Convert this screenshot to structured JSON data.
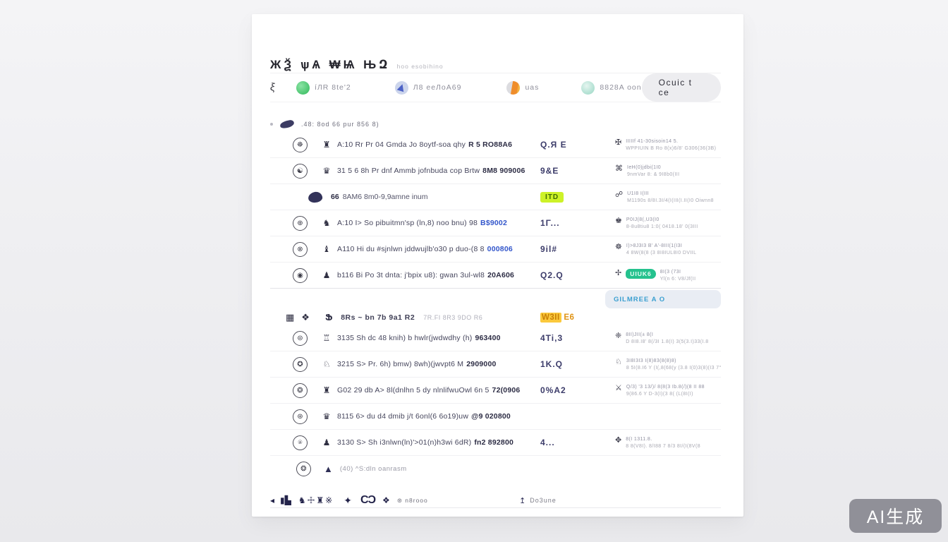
{
  "header": {
    "title": "ЖѮ ѱѦ ₩Ѩ ЊԶ",
    "subtitle": "hoo esobihino"
  },
  "tabbar": {
    "menu_icon": "ξ",
    "tabs": [
      {
        "label": "íЛR 8te'2",
        "icon_color": "#2fb859"
      },
      {
        "label": "Л8 ееЛоА69",
        "icon_color": "#4c62c6"
      },
      {
        "label": "uas",
        "icon_color": "#ef8d2b"
      },
      {
        "label": "8828A oon",
        "icon_color": "#96d6c3"
      }
    ],
    "action_button": "Ocuic t ce"
  },
  "section1": {
    "label": ".48: 8od 66 pur  856 8)"
  },
  "rows_top": [
    {
      "avatar": "☸",
      "stamp": "♜",
      "text": "A:10 Rr Pr 04 Gmda Jo 8oytf-soa qhy",
      "tail": "R 5 RO88A6",
      "value": "Q.Я E",
      "ricon": "✠",
      "r1": "IIIIIf 41-30sisoin14 5.",
      "r2": "WPPIUIN B Ro 8(x)6/8' G306(36(3B)"
    },
    {
      "avatar": "☯",
      "stamp": "♛",
      "text": "31 5 6 8h Pr dnf Ammb jofnbuda cop Brtw",
      "tail": "8M8 909006",
      "value": "9&E",
      "ricon": "⌘",
      "r1": "IeH(0)jdbi(1I0",
      "r2": "9nmVar 8: & 9I8b0(III"
    },
    {
      "kind": "group",
      "prefix": "66",
      "text": "8AM6 8m0-9,9amne inum",
      "badge": "ITD",
      "ricon": "☍",
      "r1": "U1I8 I(III",
      "r2": "M1190s 8/8I.3I/4(I(III(I.II(I0 Oiwnn8"
    },
    {
      "avatar": "⊕",
      "stamp": "♞",
      "text": "A:10 I> So pibuitmn'sp (ln,8) noo bnu) 98",
      "link": "B$9002",
      "value": "1Γ...",
      "ricon": "♚",
      "r1": "P0IJ(8(,U3(I0",
      "r2": "8-8u8tiu8 1:0( 0418.18' 0(3III"
    },
    {
      "avatar": "⊗",
      "stamp": "♝",
      "text": "A110 Hi du #sjnlwn jddwujlb'o30 p duo-(8 8",
      "link": "000806",
      "value": "9il#",
      "ricon": "☸",
      "r1": "I)>8J3I3 B' A'-8III(1(I3I",
      "r2": "4 8W(8(8 (3 8I8IUL8I0 DVIIL"
    },
    {
      "avatar": "◉",
      "stamp": "♟",
      "text": "b116 Bi Po 3t dnta: j'bpix u8): gwan 3ul-wl8",
      "tail": "20A606",
      "value": "Q2.Q",
      "ricon": "✢",
      "rbadge": "UIUK6",
      "r1": "8I(3 (73I",
      "r2": "Yl(n 6: V8/Jf(II",
      "strong": true
    }
  ],
  "section2": {
    "pill": "GILMREE A O",
    "icon1": "▦",
    "icon2": "❖",
    "glyph": "Ֆ",
    "label": "8Rs ~ bn 7b 9a1 R2",
    "sublabel": "7R.FI 8R3 9DO R6",
    "value_hl": "W3II",
    "value_rest": " E6"
  },
  "rows_bottom": [
    {
      "avatar": "⊜",
      "stamp": "♖",
      "text": "3135 Sh dc 48 knih) b hwlr(jwdwdhy (h)",
      "tail": "963400",
      "value": "4Ti,3",
      "ricon": "❈",
      "r1": "8II)JII(± 8(I",
      "r2": "D 8I8.I8' 8(/3I 1.8(I) 3(5(3.I)33(I.8"
    },
    {
      "avatar": "✪",
      "stamp": "♘",
      "text": "3215 S> Pr. 6h) bmw) 8wh)(jwvpt6 M",
      "tail": "2909000",
      "value": "1K.Q",
      "ricon": "♘",
      "r1": "3I8I3I3 I(8)83(8(8)8)",
      "r2": "8 5I(8.I6 Y (I(,8(68(y (3.8 I(0)3(8)(I3 7°"
    },
    {
      "avatar": "❂",
      "stamp": "♜",
      "text": "G02 29 db A> 8l(dnlhn 5 dy nlnlifwuOwl 6n 5",
      "tail": "72(0906",
      "value": "0%A2",
      "ricon": "⚔",
      "r1": "Q/3) '3 13/)/ 8(8(3 Ib.8(/)(8 II 88",
      "r2": "9(86.6 Y D-3(I)(3 8( (L(8I(I)"
    },
    {
      "avatar": "⊛",
      "stamp": "♛",
      "text": "8115 6> du d4 dmib j/t 6onl(6 6o19)uw",
      "tail": "@9 020800",
      "value": ""
    },
    {
      "avatar": "⍟",
      "stamp": "♟",
      "text": "3130 S> Sh i3nlwn(ln)'>01(n)h3wi 6dR)",
      "tail": "fn2 892800",
      "value": "4...",
      "ricon": "✥",
      "r1": "8(I 1311.8.",
      "r2": "8 8(V8I). 8/I88 7 8/3 8I/(I(8V(8"
    }
  ],
  "person": {
    "avatar": "❂",
    "triangle": "▲",
    "text": "(40) ^S:dln oanrasm"
  },
  "footer": {
    "parts": [
      "◂",
      "▮▙",
      "♞☩♜※",
      "✦",
      "ϹϽ",
      "❖",
      "⊛ n8rooo"
    ],
    "right_icon": "↥",
    "right_label": "Do3une"
  },
  "watermark": "AI生成",
  "colors": {
    "lime_badge": "#cdf228",
    "orange_value": "#e09314",
    "orange_highlight": "#fbc93c",
    "link_blue": "#3356cb",
    "teal_pill_text": "#3a9fd0",
    "green_badge": "#25c28e",
    "navy_value": "#3c3c6a",
    "card_bg": "#ffffff",
    "page_bg": "#efeff2"
  }
}
